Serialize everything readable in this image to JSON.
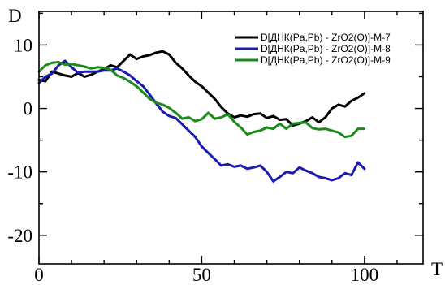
{
  "chart_data": {
    "type": "line",
    "xlabel": "T",
    "ylabel": "D",
    "xlim": [
      0,
      118
    ],
    "ylim": [
      -24.5,
      15.3
    ],
    "xticks": [
      0,
      50,
      100
    ],
    "yticks": [
      10,
      0,
      -10,
      -20
    ],
    "grid": false,
    "legend_position": "top-right",
    "series": [
      {
        "name": "D[ДНК(Pa,Pb) - ZrO2(O)]-M-7",
        "color": "#000000",
        "x": [
          0,
          2,
          4,
          6,
          8,
          10,
          12,
          14,
          16,
          18,
          20,
          22,
          24,
          26,
          28,
          30,
          32,
          34,
          36,
          38,
          40,
          42,
          44,
          46,
          48,
          50,
          52,
          54,
          56,
          58,
          60,
          62,
          64,
          66,
          68,
          70,
          72,
          74,
          76,
          78,
          80,
          82,
          84,
          86,
          88,
          90,
          92,
          94,
          96,
          98,
          100
        ],
        "y": [
          4.5,
          4.3,
          5.8,
          5.5,
          5.2,
          5.0,
          5.6,
          5.0,
          5.3,
          5.8,
          6.2,
          6.8,
          6.5,
          7.5,
          8.5,
          7.8,
          8.2,
          8.4,
          8.8,
          9.0,
          8.5,
          7.2,
          6.3,
          5.2,
          4.2,
          3.5,
          2.5,
          1.5,
          0.2,
          -0.8,
          -1.4,
          -1.1,
          -1.3,
          -0.9,
          -0.8,
          -1.5,
          -1.2,
          -1.8,
          -1.7,
          -2.7,
          -2.4,
          -2.0,
          -1.4,
          -2.2,
          -1.4,
          0.0,
          0.6,
          0.3,
          1.2,
          1.7,
          2.4
        ]
      },
      {
        "name": "D[ДНК(Pa,Pb) - ZrO2(O)]-M-8",
        "color": "#1b1bb0",
        "x": [
          0,
          2,
          4,
          6,
          8,
          10,
          12,
          14,
          16,
          18,
          20,
          22,
          24,
          26,
          28,
          30,
          32,
          34,
          36,
          38,
          40,
          42,
          44,
          46,
          48,
          50,
          52,
          54,
          56,
          58,
          60,
          62,
          64,
          66,
          68,
          70,
          72,
          74,
          76,
          78,
          80,
          82,
          84,
          86,
          88,
          90,
          92,
          94,
          96,
          98,
          100
        ],
        "y": [
          4.0,
          5.0,
          5.5,
          6.8,
          7.5,
          6.5,
          5.6,
          5.8,
          5.8,
          5.8,
          6.0,
          6.0,
          6.3,
          5.8,
          5.2,
          4.3,
          3.5,
          2.2,
          0.8,
          -0.5,
          -1.2,
          -1.5,
          -2.5,
          -3.5,
          -4.5,
          -6.0,
          -7.0,
          -8.0,
          -9.0,
          -8.8,
          -9.2,
          -9.0,
          -9.5,
          -9.3,
          -9.0,
          -10.0,
          -11.5,
          -10.8,
          -10.0,
          -10.2,
          -9.3,
          -9.8,
          -10.2,
          -10.8,
          -11.0,
          -11.3,
          -11.0,
          -10.2,
          -10.5,
          -8.5,
          -9.5
        ]
      },
      {
        "name": "D[ДНК(Pa,Pb) - ZrO2(O)]-M-9",
        "color": "#1a8a1a",
        "x": [
          0,
          2,
          4,
          6,
          8,
          10,
          12,
          14,
          16,
          18,
          20,
          22,
          24,
          26,
          28,
          30,
          32,
          34,
          36,
          38,
          40,
          42,
          44,
          46,
          48,
          50,
          52,
          54,
          56,
          58,
          60,
          62,
          64,
          66,
          68,
          70,
          72,
          74,
          76,
          78,
          80,
          82,
          84,
          86,
          88,
          90,
          92,
          94,
          96,
          98,
          100
        ],
        "y": [
          5.8,
          6.8,
          7.2,
          7.3,
          6.9,
          7.0,
          6.8,
          6.6,
          6.3,
          6.5,
          6.4,
          6.1,
          5.2,
          4.8,
          4.2,
          3.5,
          2.5,
          1.5,
          0.9,
          0.6,
          0.1,
          -0.7,
          -1.6,
          -1.4,
          -2.0,
          -1.7,
          -0.7,
          -1.6,
          -1.4,
          -0.9,
          -2.1,
          -3.0,
          -4.1,
          -3.7,
          -3.5,
          -3.0,
          -3.2,
          -2.4,
          -3.2,
          -2.4,
          -2.3,
          -2.2,
          -3.1,
          -3.3,
          -3.2,
          -3.5,
          -3.8,
          -4.5,
          -4.3,
          -3.2,
          -3.2
        ]
      }
    ]
  }
}
